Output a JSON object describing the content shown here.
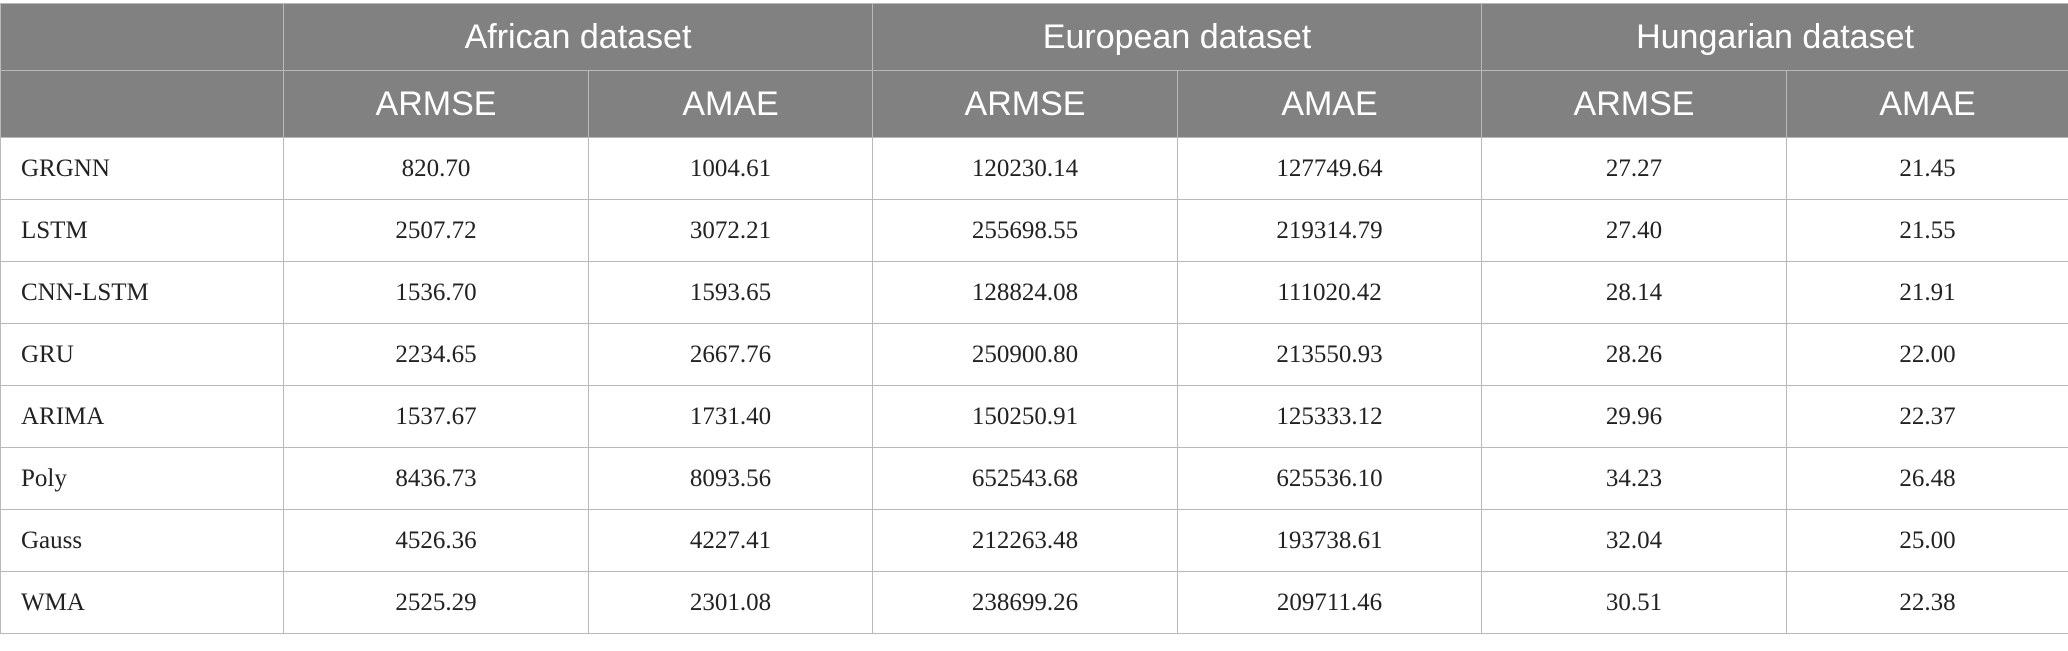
{
  "table": {
    "groups": [
      "African dataset",
      "European dataset",
      "Hungarian dataset"
    ],
    "metrics": [
      "ARMSE",
      "AMAE"
    ],
    "rows": [
      {
        "model": "GRGNN",
        "values": [
          "820.70",
          "1004.61",
          "120230.14",
          "127749.64",
          "27.27",
          "21.45"
        ]
      },
      {
        "model": "LSTM",
        "values": [
          "2507.72",
          "3072.21",
          "255698.55",
          "219314.79",
          "27.40",
          "21.55"
        ]
      },
      {
        "model": "CNN-LSTM",
        "values": [
          "1536.70",
          "1593.65",
          "128824.08",
          "111020.42",
          "28.14",
          "21.91"
        ]
      },
      {
        "model": "GRU",
        "values": [
          "2234.65",
          "2667.76",
          "250900.80",
          "213550.93",
          "28.26",
          "22.00"
        ]
      },
      {
        "model": "ARIMA",
        "values": [
          "1537.67",
          "1731.40",
          "150250.91",
          "125333.12",
          "29.96",
          "22.37"
        ]
      },
      {
        "model": "Poly",
        "values": [
          "8436.73",
          "8093.56",
          "652543.68",
          "625536.10",
          "34.23",
          "26.48"
        ]
      },
      {
        "model": "Gauss",
        "values": [
          "4526.36",
          "4227.41",
          "212263.48",
          "193738.61",
          "32.04",
          "25.00"
        ]
      },
      {
        "model": "WMA",
        "values": [
          "2525.29",
          "2301.08",
          "238699.26",
          "209711.46",
          "30.51",
          "22.38"
        ]
      }
    ]
  }
}
